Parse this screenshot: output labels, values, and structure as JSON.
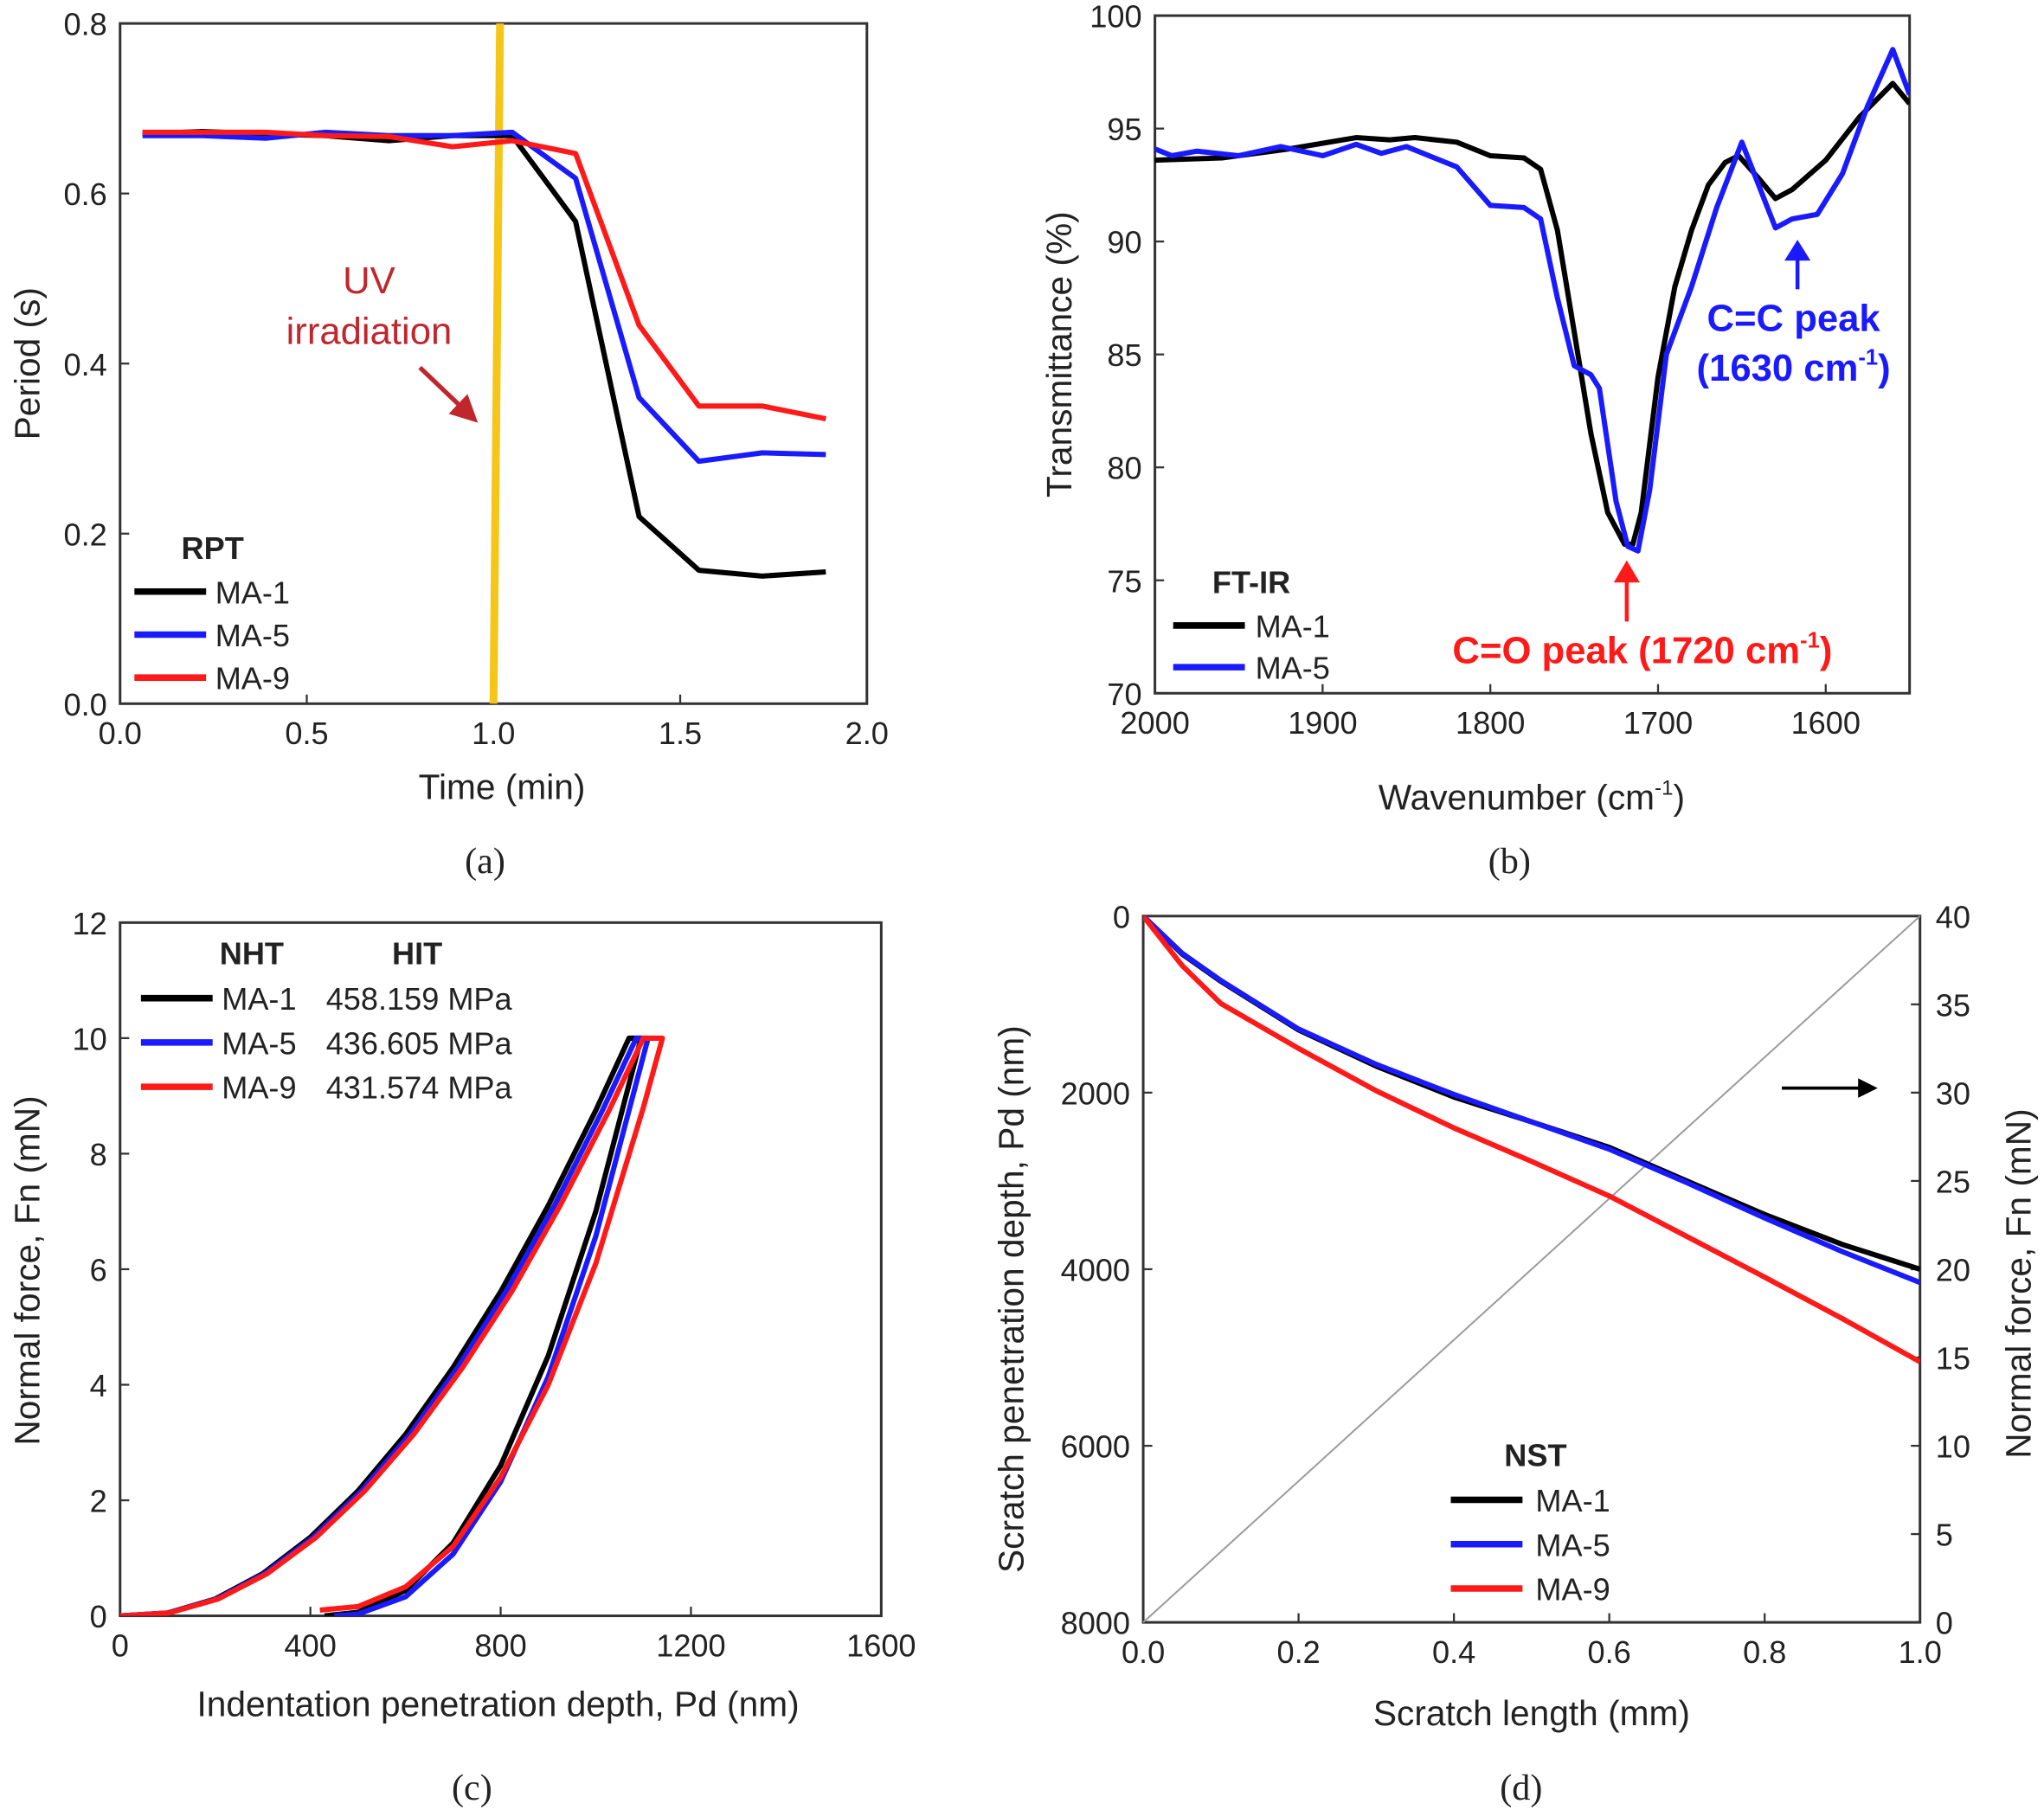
{
  "colors": {
    "MA-1": "#000000",
    "MA-5": "#1a1aff",
    "MA-9": "#ff1a1a",
    "uv_line": "#f5c518",
    "uv_text": "#c0272d",
    "diag": "#999999"
  },
  "chart_data": [
    {
      "type": "line",
      "caption": "(a)",
      "xlabel": "Time (min)",
      "ylabel": "Period (s)",
      "xlim": [
        0,
        2.0
      ],
      "ylim": [
        0,
        0.8
      ],
      "xticks": [
        "0.0",
        "0.5",
        "1.0",
        "1.5",
        "2.0"
      ],
      "yticks": [
        "0.0",
        "0.2",
        "0.4",
        "0.6",
        "0.8"
      ],
      "legend_title": "RPT",
      "legend_position": "bottom-left",
      "x": [
        0.06,
        0.22,
        0.39,
        0.55,
        0.72,
        0.89,
        1.05,
        1.22,
        1.39,
        1.55,
        1.72,
        1.89
      ],
      "series": [
        {
          "name": "MA-1",
          "values": [
            0.67,
            0.673,
            0.67,
            0.668,
            0.662,
            0.668,
            0.668,
            0.567,
            0.22,
            0.157,
            0.15,
            0.155
          ]
        },
        {
          "name": "MA-5",
          "values": [
            0.668,
            0.668,
            0.665,
            0.672,
            0.668,
            0.668,
            0.672,
            0.618,
            0.36,
            0.285,
            0.295,
            0.293
          ]
        },
        {
          "name": "MA-9",
          "values": [
            0.672,
            0.672,
            0.672,
            0.668,
            0.667,
            0.655,
            0.662,
            0.647,
            0.445,
            0.35,
            0.35,
            0.335
          ]
        }
      ],
      "uv_marker_x": 1.0,
      "annotation": {
        "line1": "UV",
        "line2": "irradiation"
      }
    },
    {
      "type": "line",
      "caption": "(b)",
      "xlabel": "Wavenumber (cm",
      "xlabel_sup": "-1",
      "xlabel_end": ")",
      "ylabel": "Transmittance (%)",
      "xlim": [
        2000,
        1550
      ],
      "ylim": [
        70,
        100
      ],
      "xticks": [
        "2000",
        "1900",
        "1800",
        "1700",
        "1600"
      ],
      "yticks": [
        "70",
        "75",
        "80",
        "85",
        "90",
        "95",
        "100"
      ],
      "legend_title": "FT-IR",
      "legend_position": "bottom-left",
      "series": [
        {
          "name": "MA-1",
          "x": [
            2000,
            1960,
            1920,
            1880,
            1860,
            1845,
            1820,
            1800,
            1780,
            1770,
            1760,
            1750,
            1740,
            1730,
            1720,
            1715,
            1710,
            1700,
            1690,
            1680,
            1670,
            1660,
            1652,
            1640,
            1630,
            1620,
            1600,
            1580,
            1560,
            1550
          ],
          "values": [
            93.6,
            93.7,
            94.1,
            94.6,
            94.5,
            94.6,
            94.4,
            93.8,
            93.7,
            93.2,
            90.5,
            86,
            81.5,
            78,
            76.6,
            76.6,
            78,
            84,
            88,
            90.5,
            92.5,
            93.5,
            93.8,
            92.8,
            91.9,
            92.3,
            93.6,
            95.5,
            97.0,
            96.1
          ]
        },
        {
          "name": "MA-5",
          "x": [
            2000,
            1990,
            1975,
            1950,
            1925,
            1900,
            1880,
            1865,
            1850,
            1820,
            1800,
            1780,
            1770,
            1760,
            1750,
            1740,
            1735,
            1725,
            1718,
            1712,
            1705,
            1695,
            1680,
            1665,
            1650,
            1640,
            1630,
            1620,
            1605,
            1590,
            1575,
            1560,
            1550
          ],
          "values": [
            94.1,
            93.8,
            94.0,
            93.8,
            94.2,
            93.8,
            94.3,
            93.9,
            94.2,
            93.3,
            91.6,
            91.5,
            91.0,
            87.5,
            84.5,
            84.1,
            83.5,
            78.5,
            76.5,
            76.3,
            79,
            85,
            88,
            91.5,
            94.4,
            92.5,
            90.6,
            91.0,
            91.2,
            93,
            96,
            98.5,
            96.5
          ]
        }
      ],
      "annotations": [
        {
          "text": "C=O peak (1720 cm",
          "sup": "-1",
          "end": ")",
          "color": "#ff1a1a"
        },
        {
          "text": "C=C peak",
          "color": "#1a1aff"
        },
        {
          "text": "(1630 cm",
          "sup": "-1",
          "end": ")",
          "color": "#1a1aff"
        }
      ]
    },
    {
      "type": "line",
      "caption": "(c)",
      "xlabel": "Indentation penetration depth, Pd (nm)",
      "ylabel": "Normal force, Fn (mN)",
      "xlim": [
        0,
        1600
      ],
      "ylim": [
        0,
        12
      ],
      "xticks": [
        "0",
        "400",
        "800",
        "1200",
        "1600"
      ],
      "yticks": [
        "0",
        "2",
        "4",
        "6",
        "8",
        "10",
        "12"
      ],
      "legend_title": "NHT",
      "legend_title2": "HIT",
      "legend_position": "top-left",
      "series": [
        {
          "name": "MA-1",
          "hit": "458.159 MPa",
          "x": [
            0,
            100,
            200,
            300,
            400,
            500,
            600,
            700,
            800,
            900,
            1000,
            1070,
            1095,
            1000,
            900,
            800,
            700,
            600,
            500,
            430
          ],
          "values": [
            0,
            0.05,
            0.29,
            0.73,
            1.36,
            2.16,
            3.14,
            4.3,
            5.61,
            7.1,
            8.75,
            10,
            10,
            7.0,
            4.5,
            2.6,
            1.26,
            0.44,
            0.06,
            0
          ]
        },
        {
          "name": "MA-5",
          "hit": "436.605 MPa",
          "x": [
            0,
            101,
            203,
            304,
            406,
            507,
            609,
            710,
            811,
            913,
            1014,
            1085,
            1110,
            1000,
            900,
            800,
            700,
            600,
            500,
            450
          ],
          "values": [
            0,
            0.05,
            0.29,
            0.73,
            1.36,
            2.16,
            3.14,
            4.3,
            5.61,
            7.1,
            8.75,
            10,
            10,
            6.57,
            4.14,
            2.32,
            1.07,
            0.33,
            0.03,
            0
          ]
        },
        {
          "name": "MA-9",
          "hit": "431.574 MPa",
          "x": [
            0,
            103,
            206,
            309,
            412,
            514,
            617,
            720,
            823,
            925,
            1028,
            1100,
            1140,
            1100,
            1000,
            900,
            800,
            700,
            600,
            500,
            420
          ],
          "values": [
            0,
            0.05,
            0.29,
            0.73,
            1.36,
            2.16,
            3.14,
            4.3,
            5.61,
            7.1,
            8.75,
            10,
            10,
            8.8,
            6.1,
            4.0,
            2.4,
            1.2,
            0.5,
            0.16,
            0.1
          ]
        }
      ]
    },
    {
      "type": "line",
      "caption": "(d)",
      "xlabel": "Scratch length (mm)",
      "ylabel": "Scratch penetration depth, Pd (nm)",
      "y2label": "Normal force, Fn (mN)",
      "xlim": [
        0,
        1.0
      ],
      "ylim": [
        0,
        8000
      ],
      "y_inverted": true,
      "y2lim": [
        0,
        40
      ],
      "xticks": [
        "0.0",
        "0.2",
        "0.4",
        "0.6",
        "0.8",
        "1.0"
      ],
      "yticks": [
        "0",
        "2000",
        "4000",
        "6000",
        "8000"
      ],
      "y2ticks": [
        "0",
        "5",
        "10",
        "15",
        "20",
        "25",
        "30",
        "35",
        "40"
      ],
      "legend_title": "NST",
      "legend_position": "bottom-center",
      "x": [
        0,
        0.05,
        0.1,
        0.2,
        0.3,
        0.4,
        0.5,
        0.6,
        0.7,
        0.8,
        0.9,
        1.0
      ],
      "series": [
        {
          "name": "MA-1",
          "values": [
            0,
            430,
            740,
            1290,
            1700,
            2050,
            2330,
            2620,
            3000,
            3380,
            3720,
            4000
          ]
        },
        {
          "name": "MA-5",
          "values": [
            0,
            420,
            730,
            1280,
            1680,
            2020,
            2330,
            2640,
            3020,
            3420,
            3800,
            4150
          ]
        },
        {
          "name": "MA-9",
          "values": [
            0,
            560,
            990,
            1500,
            1980,
            2400,
            2780,
            3170,
            3630,
            4090,
            4560,
            5050
          ]
        }
      ],
      "normal_force": {
        "axis": "y2",
        "x": [
          0,
          1.0
        ],
        "values": [
          0,
          40
        ]
      }
    }
  ]
}
